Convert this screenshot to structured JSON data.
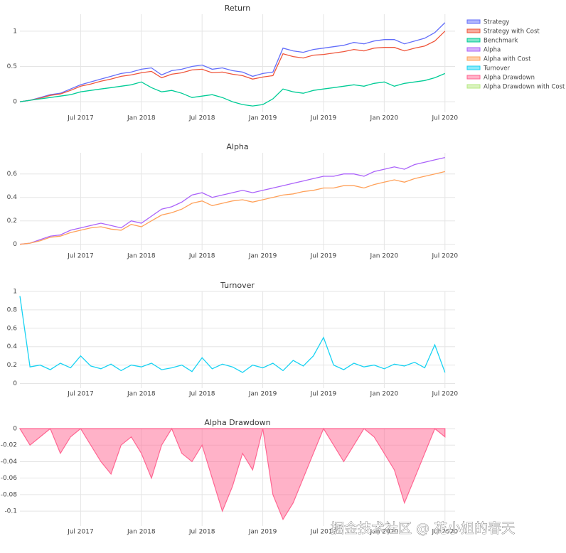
{
  "chart_data": [
    {
      "type": "line",
      "title": "Return",
      "x": [
        "2017-01",
        "2017-02",
        "2017-03",
        "2017-04",
        "2017-05",
        "2017-06",
        "2017-07",
        "2017-08",
        "2017-09",
        "2017-10",
        "2017-11",
        "2017-12",
        "2018-01",
        "2018-02",
        "2018-03",
        "2018-04",
        "2018-05",
        "2018-06",
        "2018-07",
        "2018-08",
        "2018-09",
        "2018-10",
        "2018-11",
        "2018-12",
        "2019-01",
        "2019-02",
        "2019-03",
        "2019-04",
        "2019-05",
        "2019-06",
        "2019-07",
        "2019-08",
        "2019-09",
        "2019-10",
        "2019-11",
        "2019-12",
        "2020-01",
        "2020-02",
        "2020-03",
        "2020-04",
        "2020-05",
        "2020-06",
        "2020-07"
      ],
      "series": [
        {
          "name": "Strategy",
          "color": "#636efa",
          "values": [
            0,
            0.02,
            0.06,
            0.1,
            0.12,
            0.18,
            0.24,
            0.28,
            0.32,
            0.36,
            0.4,
            0.42,
            0.46,
            0.48,
            0.38,
            0.44,
            0.46,
            0.5,
            0.52,
            0.46,
            0.48,
            0.44,
            0.42,
            0.36,
            0.4,
            0.42,
            0.76,
            0.72,
            0.7,
            0.74,
            0.76,
            0.78,
            0.8,
            0.84,
            0.82,
            0.86,
            0.88,
            0.88,
            0.82,
            0.86,
            0.9,
            0.98,
            1.12
          ]
        },
        {
          "name": "Strategy with Cost",
          "color": "#ef553b",
          "values": [
            0,
            0.02,
            0.05,
            0.09,
            0.11,
            0.16,
            0.22,
            0.25,
            0.29,
            0.32,
            0.36,
            0.38,
            0.41,
            0.43,
            0.34,
            0.39,
            0.41,
            0.45,
            0.46,
            0.41,
            0.42,
            0.39,
            0.37,
            0.32,
            0.35,
            0.37,
            0.68,
            0.64,
            0.62,
            0.66,
            0.67,
            0.69,
            0.71,
            0.74,
            0.72,
            0.76,
            0.77,
            0.77,
            0.72,
            0.76,
            0.79,
            0.86,
            1.0
          ]
        },
        {
          "name": "Benchmark",
          "color": "#00cc96",
          "values": [
            0,
            0.02,
            0.04,
            0.06,
            0.08,
            0.1,
            0.14,
            0.16,
            0.18,
            0.2,
            0.22,
            0.24,
            0.28,
            0.2,
            0.14,
            0.16,
            0.12,
            0.06,
            0.08,
            0.1,
            0.06,
            0,
            -0.04,
            -0.06,
            -0.04,
            0.04,
            0.18,
            0.14,
            0.12,
            0.16,
            0.18,
            0.2,
            0.22,
            0.24,
            0.22,
            0.26,
            0.28,
            0.22,
            0.26,
            0.28,
            0.3,
            0.34,
            0.4
          ]
        }
      ],
      "xlim": [
        "2017-01",
        "2020-08"
      ],
      "xticks": [
        {
          "value": "2017-07",
          "label": "Jul 2017"
        },
        {
          "value": "2018-01",
          "label": "Jan 2018"
        },
        {
          "value": "2018-07",
          "label": "Jul 2018"
        },
        {
          "value": "2019-01",
          "label": "Jan 2019"
        },
        {
          "value": "2019-07",
          "label": "Jul 2019"
        },
        {
          "value": "2020-01",
          "label": "Jan 2020"
        },
        {
          "value": "2020-07",
          "label": "Jul 2020"
        }
      ],
      "ylim": [
        -0.15,
        1.24
      ],
      "yticks": [
        0,
        0.5,
        1
      ],
      "grid": true
    },
    {
      "type": "line",
      "title": "Alpha",
      "x": [
        "2017-01",
        "2017-02",
        "2017-03",
        "2017-04",
        "2017-05",
        "2017-06",
        "2017-07",
        "2017-08",
        "2017-09",
        "2017-10",
        "2017-11",
        "2017-12",
        "2018-01",
        "2018-02",
        "2018-03",
        "2018-04",
        "2018-05",
        "2018-06",
        "2018-07",
        "2018-08",
        "2018-09",
        "2018-10",
        "2018-11",
        "2018-12",
        "2019-01",
        "2019-02",
        "2019-03",
        "2019-04",
        "2019-05",
        "2019-06",
        "2019-07",
        "2019-08",
        "2019-09",
        "2019-10",
        "2019-11",
        "2019-12",
        "2020-01",
        "2020-02",
        "2020-03",
        "2020-04",
        "2020-05",
        "2020-06",
        "2020-07"
      ],
      "series": [
        {
          "name": "Alpha",
          "color": "#ab63fa",
          "values": [
            0,
            0.01,
            0.04,
            0.07,
            0.08,
            0.12,
            0.14,
            0.16,
            0.18,
            0.16,
            0.14,
            0.2,
            0.18,
            0.24,
            0.3,
            0.32,
            0.36,
            0.42,
            0.44,
            0.4,
            0.42,
            0.44,
            0.46,
            0.44,
            0.46,
            0.48,
            0.5,
            0.52,
            0.54,
            0.56,
            0.58,
            0.58,
            0.6,
            0.6,
            0.58,
            0.62,
            0.64,
            0.66,
            0.64,
            0.68,
            0.7,
            0.72,
            0.74
          ]
        },
        {
          "name": "Alpha with Cost",
          "color": "#ffa15a",
          "values": [
            0,
            0.01,
            0.03,
            0.06,
            0.07,
            0.1,
            0.12,
            0.14,
            0.15,
            0.13,
            0.12,
            0.17,
            0.15,
            0.2,
            0.25,
            0.27,
            0.3,
            0.35,
            0.37,
            0.33,
            0.35,
            0.37,
            0.38,
            0.36,
            0.38,
            0.4,
            0.42,
            0.43,
            0.45,
            0.46,
            0.48,
            0.48,
            0.5,
            0.5,
            0.48,
            0.51,
            0.53,
            0.55,
            0.53,
            0.56,
            0.58,
            0.6,
            0.62
          ]
        }
      ],
      "xlim": [
        "2017-01",
        "2020-08"
      ],
      "xticks": [
        {
          "value": "2017-07",
          "label": "Jul 2017"
        },
        {
          "value": "2018-01",
          "label": "Jan 2018"
        },
        {
          "value": "2018-07",
          "label": "Jul 2018"
        },
        {
          "value": "2019-01",
          "label": "Jan 2019"
        },
        {
          "value": "2019-07",
          "label": "Jul 2019"
        },
        {
          "value": "2020-01",
          "label": "Jan 2020"
        },
        {
          "value": "2020-07",
          "label": "Jul 2020"
        }
      ],
      "ylim": [
        -0.05,
        0.78
      ],
      "yticks": [
        0,
        0.2,
        0.4,
        0.6
      ],
      "grid": true
    },
    {
      "type": "line",
      "title": "Turnover",
      "x": [
        "2017-01",
        "2017-02",
        "2017-03",
        "2017-04",
        "2017-05",
        "2017-06",
        "2017-07",
        "2017-08",
        "2017-09",
        "2017-10",
        "2017-11",
        "2017-12",
        "2018-01",
        "2018-02",
        "2018-03",
        "2018-04",
        "2018-05",
        "2018-06",
        "2018-07",
        "2018-08",
        "2018-09",
        "2018-10",
        "2018-11",
        "2018-12",
        "2019-01",
        "2019-02",
        "2019-03",
        "2019-04",
        "2019-05",
        "2019-06",
        "2019-07",
        "2019-08",
        "2019-09",
        "2019-10",
        "2019-11",
        "2019-12",
        "2020-01",
        "2020-02",
        "2020-03",
        "2020-04",
        "2020-05",
        "2020-06",
        "2020-07"
      ],
      "series": [
        {
          "name": "Turnover",
          "color": "#19d3f3",
          "values": [
            0.95,
            0.18,
            0.2,
            0.15,
            0.22,
            0.17,
            0.3,
            0.19,
            0.16,
            0.21,
            0.14,
            0.2,
            0.18,
            0.22,
            0.15,
            0.17,
            0.2,
            0.13,
            0.28,
            0.16,
            0.21,
            0.18,
            0.12,
            0.2,
            0.17,
            0.22,
            0.14,
            0.25,
            0.19,
            0.3,
            0.5,
            0.2,
            0.15,
            0.22,
            0.18,
            0.2,
            0.16,
            0.21,
            0.19,
            0.23,
            0.17,
            0.42,
            0.12
          ]
        }
      ],
      "xlim": [
        "2017-01",
        "2020-08"
      ],
      "xticks": [
        {
          "value": "2017-07",
          "label": "Jul 2017"
        },
        {
          "value": "2018-01",
          "label": "Jan 2018"
        },
        {
          "value": "2018-07",
          "label": "Jul 2018"
        },
        {
          "value": "2019-01",
          "label": "Jan 2019"
        },
        {
          "value": "2019-07",
          "label": "Jul 2019"
        },
        {
          "value": "2020-01",
          "label": "Jan 2020"
        },
        {
          "value": "2020-07",
          "label": "Jul 2020"
        }
      ],
      "ylim": [
        -0.05,
        1.0
      ],
      "yticks": [
        0,
        0.2,
        0.4,
        0.6,
        0.8,
        1
      ],
      "grid": true
    },
    {
      "type": "area",
      "title": "Alpha Drawdown",
      "x": [
        "2017-01",
        "2017-02",
        "2017-03",
        "2017-04",
        "2017-05",
        "2017-06",
        "2017-07",
        "2017-08",
        "2017-09",
        "2017-10",
        "2017-11",
        "2017-12",
        "2018-01",
        "2018-02",
        "2018-03",
        "2018-04",
        "2018-05",
        "2018-06",
        "2018-07",
        "2018-08",
        "2018-09",
        "2018-10",
        "2018-11",
        "2018-12",
        "2019-01",
        "2019-02",
        "2019-03",
        "2019-04",
        "2019-05",
        "2019-06",
        "2019-07",
        "2019-08",
        "2019-09",
        "2019-10",
        "2019-11",
        "2019-12",
        "2020-01",
        "2020-02",
        "2020-03",
        "2020-04",
        "2020-05",
        "2020-06",
        "2020-07"
      ],
      "series": [
        {
          "name": "Alpha Drawdown",
          "color": "#ff6692",
          "values": [
            0,
            -0.02,
            -0.01,
            0,
            -0.03,
            -0.01,
            0,
            -0.02,
            -0.04,
            -0.055,
            -0.02,
            -0.01,
            -0.03,
            -0.06,
            -0.02,
            0,
            -0.03,
            -0.04,
            -0.02,
            -0.06,
            -0.1,
            -0.07,
            -0.03,
            -0.05,
            0,
            -0.08,
            -0.11,
            -0.09,
            -0.06,
            -0.03,
            0,
            -0.02,
            -0.04,
            -0.02,
            0,
            -0.01,
            -0.03,
            -0.05,
            -0.09,
            -0.06,
            -0.03,
            0,
            -0.01
          ]
        }
      ],
      "xlim": [
        "2017-01",
        "2020-08"
      ],
      "xticks": [
        {
          "value": "2017-07",
          "label": "Jul 2017"
        },
        {
          "value": "2018-01",
          "label": "Jan 2018"
        },
        {
          "value": "2018-07",
          "label": "Jul 2018"
        },
        {
          "value": "2019-01",
          "label": "Jan 2019"
        },
        {
          "value": "2019-07",
          "label": "Jul 2019"
        },
        {
          "value": "2020-01",
          "label": "Jan 2020"
        },
        {
          "value": "2020-07",
          "label": "Jul 2020"
        }
      ],
      "ylim": [
        -0.118,
        0
      ],
      "yticks": [
        0,
        -0.02,
        -0.04,
        -0.06,
        -0.08,
        -0.1
      ],
      "grid": true
    }
  ],
  "legend": [
    {
      "name": "Strategy",
      "color": "#636efa"
    },
    {
      "name": "Strategy with Cost",
      "color": "#ef553b"
    },
    {
      "name": "Benchmark",
      "color": "#00cc96"
    },
    {
      "name": "Alpha",
      "color": "#ab63fa"
    },
    {
      "name": "Alpha with Cost",
      "color": "#ffa15a"
    },
    {
      "name": "Turnover",
      "color": "#19d3f3"
    },
    {
      "name": "Alpha Drawdown",
      "color": "#ff6692"
    },
    {
      "name": "Alpha Drawdown with Cost",
      "color": "#b6e880"
    }
  ],
  "watermark": "掘金技术社区 @ 花小姐的春天"
}
